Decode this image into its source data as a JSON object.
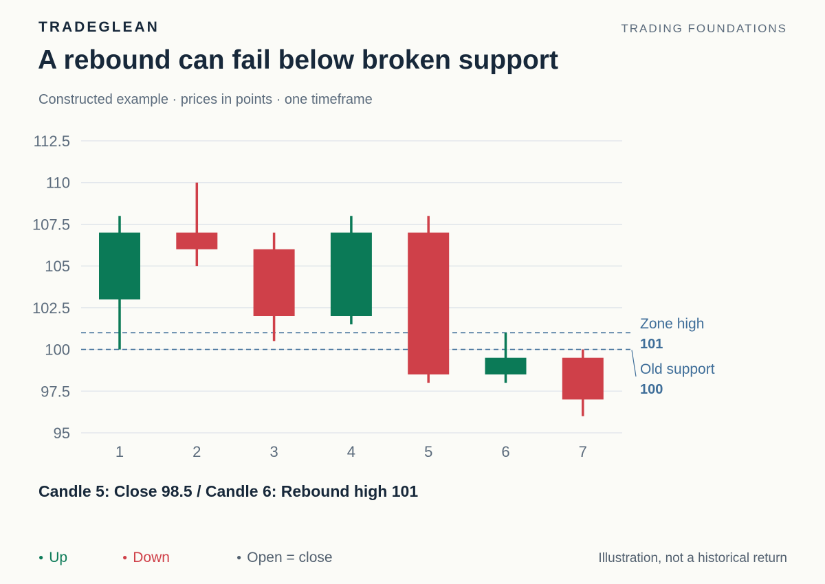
{
  "header": {
    "brand": "TRADEGLEAN",
    "kicker": "TRADING FOUNDATIONS",
    "title": "A rebound can fail below broken support",
    "subtitle": "Constructed example · prices in points · one timeframe"
  },
  "chart_data": {
    "type": "candlestick",
    "title": "A rebound can fail below broken support",
    "subtitle": "Constructed example · prices in points · one timeframe",
    "xlabel": "",
    "ylabel": "",
    "categories": [
      "1",
      "2",
      "3",
      "4",
      "5",
      "6",
      "7"
    ],
    "ylim": [
      95,
      112.5
    ],
    "yticks": [
      95,
      97.5,
      100,
      102.5,
      105,
      107.5,
      110,
      112.5
    ],
    "ytick_labels": [
      "95",
      "97.5",
      "100",
      "102.5",
      "105",
      "107.5",
      "110",
      "112.5"
    ],
    "grid": true,
    "candles": [
      {
        "label": "1",
        "open": 103,
        "high": 108,
        "low": 100,
        "close": 107
      },
      {
        "label": "2",
        "open": 107,
        "high": 110,
        "low": 105,
        "close": 106
      },
      {
        "label": "3",
        "open": 106,
        "high": 107,
        "low": 100.5,
        "close": 102
      },
      {
        "label": "4",
        "open": 102,
        "high": 108,
        "low": 101.5,
        "close": 107
      },
      {
        "label": "5",
        "open": 107,
        "high": 108,
        "low": 98,
        "close": 98.5
      },
      {
        "label": "6",
        "open": 98.5,
        "high": 101,
        "low": 98,
        "close": 99.5
      },
      {
        "label": "7",
        "open": 99.5,
        "high": 100,
        "low": 96,
        "close": 97
      }
    ],
    "reference_lines": [
      {
        "label": "Zone high",
        "value": 101,
        "value_label": "101"
      },
      {
        "label": "Old support",
        "value": 100,
        "value_label": "100"
      }
    ],
    "annotation": "Candle 5: Close 98.5 / Candle 6: Rebound high 101",
    "legend": [
      {
        "label": "Up",
        "color": "#0b7a57"
      },
      {
        "label": "Down",
        "color": "#cf4049"
      },
      {
        "label": "Open = close",
        "color": "#52606f"
      }
    ],
    "legend_position": "bottom-left",
    "colors": {
      "up": "#0b7a57",
      "down": "#cf4049",
      "grid": "#dfe4ea",
      "reference": "#3f6e99",
      "axis_text": "#5b6b7c"
    }
  },
  "footnote": "Illustration, not a historical return"
}
